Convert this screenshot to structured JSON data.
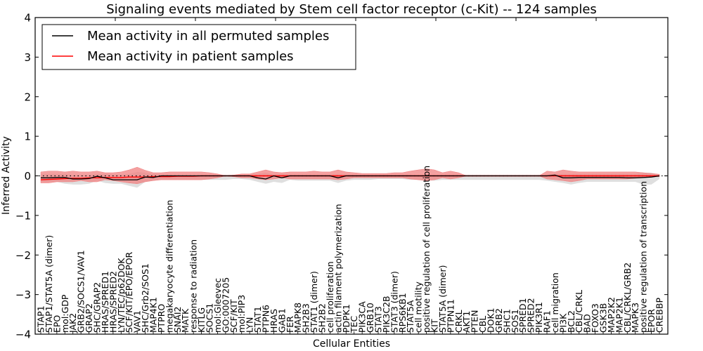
{
  "chart_data": {
    "type": "line",
    "title": "Signaling events mediated by Stem cell factor receptor (c-Kit) -- 124 samples",
    "xlabel": "Cellular Entities",
    "ylabel": "Inferred Activity",
    "ylim": [
      -4,
      4
    ],
    "yticks": [
      -4,
      -3,
      -2,
      -1,
      0,
      1,
      2,
      3,
      4
    ],
    "ytick_labels": [
      "−4",
      "−3",
      "−2",
      "−1",
      "0",
      "1",
      "2",
      "3",
      "4"
    ],
    "grid": false,
    "legend": {
      "placement": "top-left",
      "entries": [
        {
          "label": "Mean activity in all permuted samples",
          "color": "#000000"
        },
        {
          "label": "Mean activity in patient samples",
          "color": "#ff0000"
        }
      ]
    },
    "colors": {
      "permuted_line": "#000000",
      "patient_line": "#ff0000",
      "permuted_band": "#d9d9d9",
      "patient_band": "#f08080",
      "zero_line": "#000000"
    },
    "categories": [
      "STAP1",
      "STAP1/STAT5A (dimer)",
      "EPO",
      "mol:GDP",
      "JAK2",
      "GRB2/SOCS1/VAV1",
      "GRAP2",
      "SHC/GRAP2",
      "HRAS/SPRED1",
      "HRAS/SPRED2",
      "LYN/TEC/p62DOK",
      "SCF/KIT/EPO/EPOR",
      "VAV1",
      "SHC/Grb2/SOS1",
      "MAP4K1",
      "PTPRO",
      "megakaryocyte differentiation",
      "SNAI2",
      "MATK",
      "response to radiation",
      "KITLG",
      "SOCS1",
      "mol:Gleevec",
      "GO:0007205",
      "SCF/KIT",
      "mol:PIP3",
      "LYN",
      "STAT1",
      "PTPN6",
      "HRAS",
      "GAB1",
      "FER",
      "MAPK8",
      "SH2B3",
      "STAT1 (dimer)",
      "SH2B2",
      "cell proliferation",
      "actin filament polymerization",
      "PDPK1",
      "TEC",
      "PIK3CA",
      "GRB10",
      "STAT3",
      "PIK3C2B",
      "STAT3 (dimer)",
      "RPS6KB1",
      "STAT5A",
      "cell motility",
      "positive regulation of cell proliferation",
      "KIT",
      "STAT5A (dimer)",
      "PTPN11",
      "CRKL",
      "AKT1",
      "PTEN",
      "CBL",
      "DOK1",
      "GRB2",
      "SHC1",
      "SOS1",
      "SPRED1",
      "SPRED2",
      "PIK3R1",
      "RAF1",
      "cell migration",
      "PI3K",
      "BCL2",
      "CBL/CRKL",
      "BAD",
      "FOXO3",
      "GSK3B",
      "MAP2K2",
      "MAP2K1",
      "CBL/CRKL/GRB2",
      "MAPK3",
      "positive regulation of transcription",
      "EPOR",
      "CREBBP"
    ],
    "series": [
      {
        "name": "Mean activity in all permuted samples",
        "values": [
          -0.05,
          -0.05,
          -0.04,
          -0.04,
          -0.08,
          -0.08,
          -0.07,
          -0.01,
          -0.05,
          -0.1,
          -0.1,
          -0.1,
          -0.1,
          -0.03,
          -0.04,
          0.0,
          0.0,
          0.0,
          0.0,
          0.0,
          0.0,
          0.0,
          0.0,
          0.0,
          0.0,
          0.0,
          0.0,
          -0.05,
          -0.08,
          0.0,
          -0.05,
          0.0,
          0.0,
          0.0,
          0.0,
          0.0,
          0.0,
          -0.05,
          0.0,
          0.0,
          0.0,
          0.0,
          0.0,
          0.0,
          0.0,
          0.0,
          0.0,
          0.0,
          0.0,
          0.0,
          0.0,
          0.0,
          0.0,
          0.0,
          0.0,
          0.0,
          0.0,
          0.0,
          0.0,
          0.0,
          0.0,
          0.0,
          0.0,
          0.0,
          0.02,
          -0.05,
          -0.05,
          -0.04,
          -0.04,
          -0.04,
          -0.04,
          -0.04,
          -0.04,
          -0.05,
          -0.05,
          -0.04,
          -0.03,
          0.0
        ],
        "band_lower": [
          -0.15,
          -0.15,
          -0.15,
          -0.2,
          -0.22,
          -0.22,
          -0.2,
          -0.12,
          -0.18,
          -0.2,
          -0.2,
          -0.25,
          -0.3,
          -0.15,
          -0.12,
          -0.1,
          -0.1,
          -0.1,
          -0.1,
          -0.1,
          -0.1,
          -0.1,
          -0.1,
          -0.1,
          -0.08,
          -0.08,
          -0.1,
          -0.15,
          -0.2,
          -0.15,
          -0.18,
          -0.1,
          -0.12,
          -0.12,
          -0.12,
          -0.12,
          -0.12,
          -0.18,
          -0.12,
          -0.1,
          -0.1,
          -0.1,
          -0.08,
          -0.08,
          -0.08,
          -0.08,
          -0.1,
          -0.1,
          -0.12,
          -0.12,
          -0.1,
          -0.1,
          -0.1,
          -0.1,
          -0.1,
          -0.1,
          -0.1,
          -0.1,
          -0.1,
          -0.1,
          -0.1,
          -0.1,
          -0.1,
          -0.12,
          -0.15,
          -0.18,
          -0.22,
          -0.18,
          -0.15,
          -0.15,
          -0.15,
          -0.15,
          -0.15,
          -0.15,
          -0.15,
          -0.22,
          -0.22,
          -0.08
        ],
        "band_upper": [
          0.05,
          0.05,
          0.05,
          0.05,
          0.02,
          0.02,
          0.02,
          0.05,
          0.05,
          0.03,
          0.03,
          0.05,
          0.1,
          0.08,
          0.05,
          0.03,
          0.03,
          0.03,
          0.03,
          0.03,
          0.03,
          0.03,
          0.03,
          0.03,
          0.03,
          0.03,
          0.03,
          0.05,
          0.08,
          0.03,
          0.05,
          0.03,
          0.03,
          0.03,
          0.03,
          0.03,
          0.03,
          0.05,
          0.03,
          0.03,
          0.03,
          0.03,
          0.03,
          0.03,
          0.03,
          0.03,
          0.03,
          0.03,
          0.03,
          0.03,
          0.03,
          0.03,
          0.03,
          0.03,
          0.03,
          0.03,
          0.03,
          0.03,
          0.03,
          0.03,
          0.03,
          0.03,
          0.03,
          0.03,
          0.05,
          0.05,
          0.05,
          0.05,
          0.05,
          0.05,
          0.05,
          0.05,
          0.05,
          0.05,
          0.05,
          0.08,
          0.08,
          0.03
        ]
      },
      {
        "name": "Mean activity in patient samples",
        "values": [
          -0.1,
          -0.09,
          -0.08,
          -0.07,
          -0.06,
          -0.06,
          -0.05,
          -0.05,
          -0.04,
          -0.04,
          -0.04,
          -0.03,
          -0.03,
          -0.03,
          -0.02,
          -0.02,
          -0.02,
          -0.01,
          -0.01,
          -0.01,
          0.0,
          0.0,
          0.0,
          0.0,
          0.0,
          0.0,
          0.0,
          0.0,
          0.0,
          0.0,
          0.0,
          0.0,
          0.0,
          0.0,
          0.0,
          0.0,
          0.0,
          0.0,
          0.0,
          0.0,
          0.0,
          0.0,
          0.0,
          0.0,
          0.0,
          0.0,
          0.0,
          0.0,
          0.0,
          0.0,
          0.0,
          0.0,
          0.0,
          0.0,
          0.0,
          0.0,
          0.0,
          0.0,
          0.0,
          0.0,
          0.0,
          0.0,
          0.0,
          0.0,
          0.0,
          0.0,
          0.0,
          0.0,
          0.0,
          0.0,
          0.0,
          0.0,
          0.0,
          0.0,
          0.0,
          0.0,
          0.0,
          0.0
        ],
        "band_lower": [
          -0.18,
          -0.18,
          -0.15,
          -0.15,
          -0.15,
          -0.12,
          -0.15,
          -0.15,
          -0.1,
          -0.12,
          -0.15,
          -0.18,
          -0.2,
          -0.15,
          -0.12,
          -0.1,
          -0.1,
          -0.1,
          -0.1,
          -0.1,
          -0.1,
          -0.08,
          -0.05,
          0.0,
          -0.02,
          -0.05,
          -0.05,
          -0.08,
          -0.1,
          -0.08,
          -0.05,
          -0.08,
          -0.08,
          -0.08,
          -0.08,
          -0.08,
          -0.08,
          -0.1,
          -0.08,
          -0.05,
          -0.05,
          -0.05,
          -0.05,
          -0.05,
          -0.05,
          -0.05,
          -0.08,
          -0.1,
          -0.12,
          -0.1,
          -0.05,
          -0.08,
          -0.05,
          0.0,
          0.0,
          0.0,
          0.0,
          0.0,
          0.0,
          0.0,
          0.0,
          0.0,
          0.0,
          -0.08,
          -0.1,
          -0.12,
          -0.15,
          -0.12,
          -0.08,
          -0.08,
          -0.08,
          -0.08,
          -0.08,
          -0.08,
          -0.06,
          -0.05,
          -0.03,
          -0.02
        ],
        "band_upper": [
          0.1,
          0.12,
          0.12,
          0.1,
          0.12,
          0.1,
          0.1,
          0.12,
          0.08,
          0.08,
          0.1,
          0.15,
          0.22,
          0.14,
          0.08,
          0.08,
          0.1,
          0.1,
          0.1,
          0.1,
          0.1,
          0.08,
          0.05,
          0.0,
          0.02,
          0.05,
          0.05,
          0.1,
          0.15,
          0.1,
          0.08,
          0.1,
          0.1,
          0.1,
          0.12,
          0.1,
          0.1,
          0.15,
          0.1,
          0.08,
          0.06,
          0.06,
          0.06,
          0.06,
          0.08,
          0.08,
          0.12,
          0.15,
          0.18,
          0.15,
          0.08,
          0.12,
          0.08,
          0.0,
          0.0,
          0.0,
          0.0,
          0.0,
          0.0,
          0.0,
          0.0,
          0.0,
          0.0,
          0.12,
          0.1,
          0.15,
          0.12,
          0.1,
          0.1,
          0.1,
          0.1,
          0.1,
          0.1,
          0.1,
          0.1,
          0.08,
          0.06,
          0.04
        ]
      }
    ]
  }
}
